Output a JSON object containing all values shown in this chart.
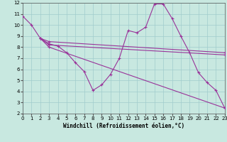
{
  "xlabel": "Windchill (Refroidissement éolien,°C)",
  "background_color": "#c8e8e0",
  "line_color": "#993399",
  "grid_color": "#a0cccc",
  "xlim": [
    0,
    23
  ],
  "ylim": [
    2,
    12
  ],
  "xticks": [
    0,
    1,
    2,
    3,
    4,
    5,
    6,
    7,
    8,
    9,
    10,
    11,
    12,
    13,
    14,
    15,
    16,
    17,
    18,
    19,
    20,
    21,
    22,
    23
  ],
  "yticks": [
    2,
    3,
    4,
    5,
    6,
    7,
    8,
    9,
    10,
    11,
    12
  ],
  "lines": [
    {
      "x": [
        0,
        1,
        2,
        3,
        4,
        5,
        6,
        7,
        8,
        9,
        10,
        11,
        12,
        13,
        14,
        15,
        16,
        17,
        18,
        19,
        20,
        21,
        22,
        23
      ],
      "y": [
        10.8,
        10.0,
        8.8,
        8.3,
        8.1,
        7.5,
        6.6,
        5.8,
        4.1,
        4.6,
        5.55,
        7.0,
        9.5,
        9.3,
        9.8,
        11.9,
        11.9,
        10.6,
        9.0,
        7.5,
        5.7,
        4.8,
        4.1,
        2.5
      ]
    },
    {
      "x": [
        2,
        3,
        23
      ],
      "y": [
        8.8,
        8.5,
        7.5
      ]
    },
    {
      "x": [
        2,
        3,
        23
      ],
      "y": [
        8.8,
        8.2,
        7.3
      ]
    },
    {
      "x": [
        2,
        3,
        23
      ],
      "y": [
        8.8,
        8.0,
        2.5
      ]
    }
  ]
}
